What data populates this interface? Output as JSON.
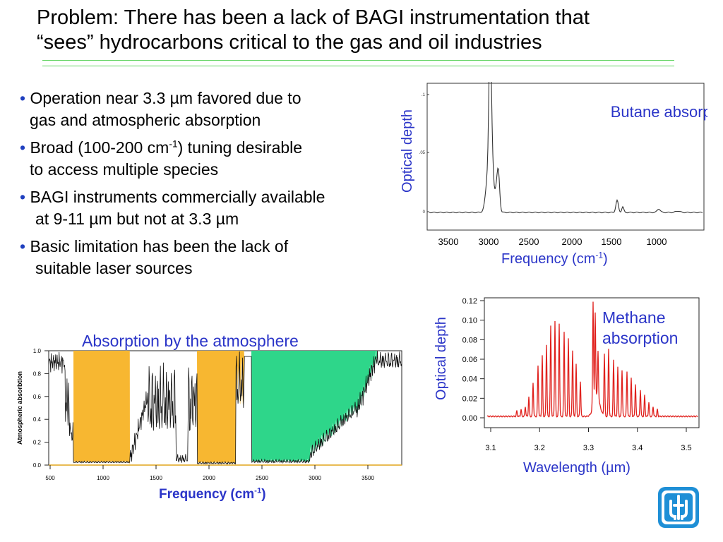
{
  "title": {
    "line1": "Problem: There has been a lack of BAGI instrumentation that",
    "line2": "“sees” hydrocarbons critical to the gas and oil industries"
  },
  "bullets": [
    {
      "l1": "Operation near 3.3 µm favored due to",
      "l2": "gas and atmospheric absorption"
    },
    {
      "l1a": "Broad (100-200 cm",
      "l1sup": "-1",
      "l1b": ") tuning desirable",
      "l2": "to access multiple species"
    },
    {
      "l1": "BAGI instruments commercially available",
      "l2": "at 9-11 µm but not at 3.3 µm"
    },
    {
      "l1": "Basic limitation has been the lack of",
      "l2": "suitable laser sources"
    }
  ],
  "bullet_symbol": "•",
  "colors": {
    "accent_blue": "#2b35c8",
    "rule_green": "#5fd35f",
    "atm_orange": "#f7b731",
    "atm_green": "#2ed68a",
    "methane_red": "#e0201c",
    "logo_blue": "#1e8fd6"
  },
  "butane": {
    "label": "Butane absorption",
    "ylabel": "Optical depth",
    "xlabel_main": "Frequency (cm",
    "xlabel_sup": "-1",
    "xlabel_end": ")",
    "yticks": [
      ".1",
      ".05",
      "0"
    ],
    "xticks": [
      "3500",
      "3000",
      "2500",
      "2000",
      "1500",
      "1000"
    ]
  },
  "methane": {
    "label_line1": "Methane",
    "label_line2": "absorption",
    "ylabel": "Optical depth",
    "xlabel": "Wavelength (µm)",
    "yticks": [
      "0.12",
      "0.10",
      "0.08",
      "0.06",
      "0.04",
      "0.02",
      "0.00"
    ],
    "xticks": [
      "3.1",
      "3.2",
      "3.3",
      "3.4",
      "3.5"
    ]
  },
  "atmosphere": {
    "title": "Absorption by the atmosphere",
    "ylabel": "Atmospheric absorbtion",
    "xlabel_main": "Frequency (cm",
    "xlabel_sup": "-1",
    "xlabel_end": ")",
    "yticks": [
      "1.0",
      "0.8",
      "0.6",
      "0.4",
      "0.2",
      "0.0"
    ],
    "xticks": [
      "500",
      "1000",
      "1500",
      "2000",
      "2500",
      "3000",
      "3500"
    ]
  },
  "logo": {
    "icon": "sandia-thunderbird-icon"
  }
}
